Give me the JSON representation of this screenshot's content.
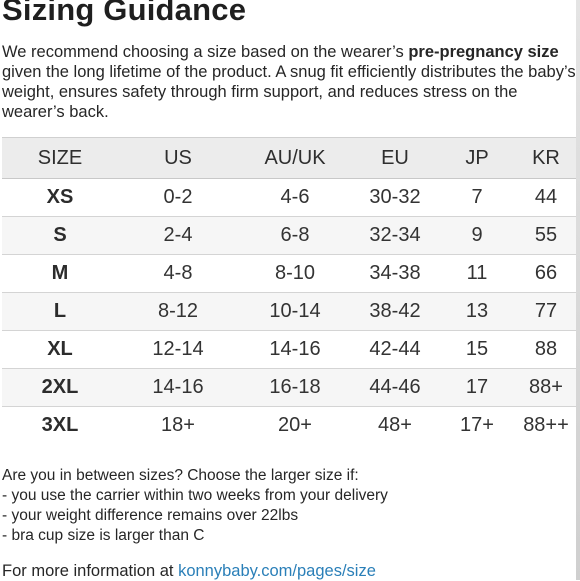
{
  "title": "Sizing Guidance",
  "intro": {
    "part1": "We recommend choosing a size based on the wearer’s ",
    "bold": "pre-pregnancy size",
    "part2": " given the long lifetime of the product. A snug fit efficiently distributes the baby’s weight, ensures safety through firm support, and reduces stress on the wearer’s back."
  },
  "table": {
    "headers": [
      "SIZE",
      "US",
      "AU/UK",
      "EU",
      "JP",
      "KR"
    ],
    "rows": [
      [
        "XS",
        "0-2",
        "4-6",
        "30-32",
        "7",
        "44"
      ],
      [
        "S",
        "2-4",
        "6-8",
        "32-34",
        "9",
        "55"
      ],
      [
        "M",
        "4-8",
        "8-10",
        "34-38",
        "11",
        "66"
      ],
      [
        "L",
        "8-12",
        "10-14",
        "38-42",
        "13",
        "77"
      ],
      [
        "XL",
        "12-14",
        "14-16",
        "42-44",
        "15",
        "88"
      ],
      [
        "2XL",
        "14-16",
        "16-18",
        "44-46",
        "17",
        "88+"
      ],
      [
        "3XL",
        "18+",
        "20+",
        "48+",
        "17+",
        "88++"
      ]
    ]
  },
  "notes": {
    "question": "Are you in between sizes? Choose the larger size if:",
    "items": [
      "- you use the carrier within two weeks from your delivery",
      "- your weight difference remains over 22lbs",
      "- bra cup size is larger than C"
    ]
  },
  "footer": {
    "text": "For more information at ",
    "link": "konnybaby.com/pages/size"
  },
  "colors": {
    "link": "#2a7fb8",
    "header_bg": "#ececec"
  }
}
